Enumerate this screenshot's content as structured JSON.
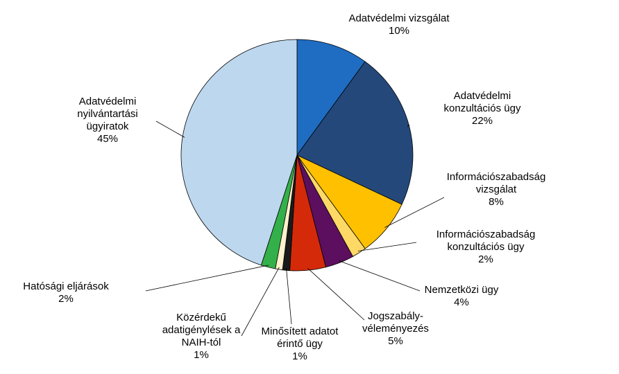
{
  "chart_data": {
    "type": "pie",
    "categories": [
      "Adatvédelmi  vizsgálat",
      "Adatvédelmi\nkonzultációs ügy",
      "Információszabadság\nvizsgálat",
      "Információszabadság\nkonzultációs ügy",
      "Nemzetközi ügy",
      "Jogszabály-\nvéleményezés",
      "Minősített adatot\nérintő ügy",
      "Közérdekű\nadatigénylések a\nNAIH-tól",
      "Hatósági eljárások",
      "Adatvédelmi\nnyilvántartási\nügyiratok"
    ],
    "values": [
      10,
      22,
      8,
      2,
      4,
      5,
      1,
      1,
      2,
      45
    ],
    "value_labels": [
      "10%",
      "22%",
      "8%",
      "2%",
      "4%",
      "5%",
      "1%",
      "1%",
      "2%",
      "45%"
    ],
    "colors": [
      "#1f6dc2",
      "#24487a",
      "#ffc000",
      "#ffd966",
      "#5c0f5e",
      "#d42a0a",
      "#1a1a1a",
      "#fff2cc",
      "#33b04a",
      "#bdd7ee"
    ]
  }
}
